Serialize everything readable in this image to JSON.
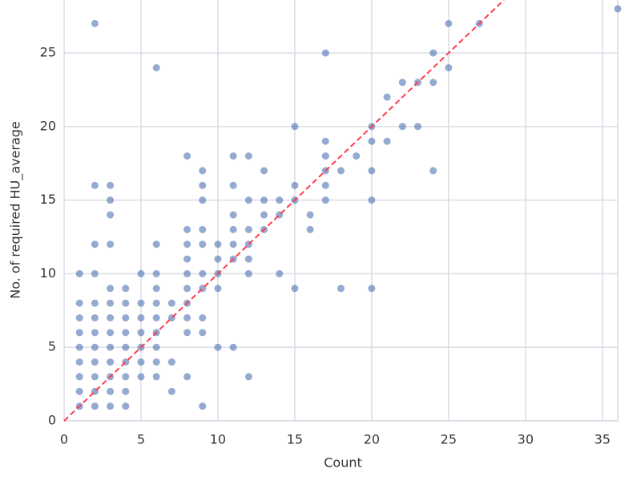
{
  "chart_data": {
    "type": "scatter",
    "xlabel": "Count",
    "ylabel": "No. of required HU_average",
    "color": "#4c72b0",
    "x": [
      1,
      1,
      1,
      1,
      1,
      1,
      1,
      1,
      1,
      2,
      2,
      2,
      2,
      2,
      2,
      2,
      2,
      2,
      2,
      2,
      2,
      3,
      3,
      3,
      3,
      3,
      3,
      3,
      3,
      3,
      3,
      3,
      3,
      3,
      4,
      4,
      4,
      4,
      4,
      4,
      4,
      4,
      4,
      5,
      5,
      5,
      5,
      5,
      5,
      5,
      6,
      6,
      6,
      6,
      6,
      6,
      6,
      6,
      6,
      6,
      7,
      7,
      7,
      7,
      8,
      8,
      8,
      8,
      8,
      8,
      8,
      8,
      8,
      8,
      9,
      9,
      9,
      9,
      9,
      9,
      9,
      9,
      9,
      9,
      10,
      10,
      10,
      10,
      10,
      11,
      11,
      11,
      11,
      11,
      11,
      11,
      12,
      12,
      12,
      12,
      12,
      12,
      12,
      13,
      13,
      13,
      13,
      14,
      14,
      14,
      15,
      15,
      15,
      15,
      16,
      16,
      17,
      17,
      17,
      17,
      17,
      17,
      18,
      18,
      19,
      20,
      20,
      20,
      20,
      20,
      21,
      21,
      22,
      22,
      23,
      23,
      24,
      24,
      24,
      25,
      25,
      27,
      36
    ],
    "y": [
      1,
      2,
      3,
      4,
      5,
      6,
      7,
      8,
      10,
      1,
      2,
      3,
      4,
      5,
      6,
      7,
      8,
      10,
      12,
      16,
      27,
      1,
      2,
      3,
      4,
      5,
      6,
      7,
      8,
      9,
      12,
      14,
      15,
      16,
      1,
      2,
      3,
      4,
      5,
      6,
      7,
      8,
      9,
      3,
      4,
      5,
      6,
      7,
      8,
      10,
      3,
      4,
      5,
      6,
      7,
      8,
      9,
      10,
      12,
      24,
      2,
      4,
      7,
      8,
      3,
      6,
      7,
      8,
      9,
      10,
      11,
      12,
      13,
      18,
      1,
      6,
      7,
      9,
      10,
      12,
      13,
      15,
      16,
      17,
      5,
      9,
      10,
      11,
      12,
      5,
      11,
      12,
      13,
      14,
      16,
      18,
      3,
      10,
      11,
      12,
      13,
      15,
      18,
      13,
      14,
      15,
      17,
      10,
      14,
      15,
      9,
      15,
      16,
      20,
      13,
      14,
      15,
      16,
      17,
      18,
      19,
      25,
      9,
      17,
      18,
      9,
      15,
      17,
      19,
      20,
      19,
      22,
      20,
      23,
      20,
      23,
      17,
      23,
      25,
      24,
      27,
      27,
      28
    ],
    "xlim": [
      0,
      36
    ],
    "ylim": [
      0,
      28.6
    ],
    "xticks": [
      0,
      5,
      10,
      15,
      20,
      25,
      30,
      35
    ],
    "yticks": [
      0,
      5,
      10,
      15,
      20,
      25
    ],
    "grid": true,
    "reference_line": {
      "color": "#ff3b4e",
      "style": "dashed"
    }
  }
}
